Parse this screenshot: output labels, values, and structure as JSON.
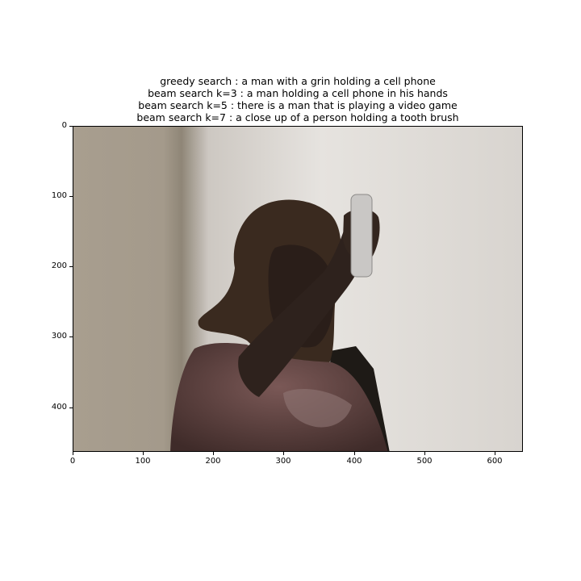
{
  "titles": [
    "greedy search : a man with a grin holding a cell phone",
    "beam search k=3 :  a man holding a cell phone in his hands",
    "beam search k=5 :  there is a man that is playing a video game",
    "beam search k=7 :  a close up of a person holding a tooth brush"
  ],
  "image": {
    "subject": "person holding a white game controller up",
    "colors": {
      "wall_left": "#a59a8a",
      "wall_right": "#dedad6",
      "figure": "#2c201c",
      "shirt": "#5a3f3c",
      "remote": "#c8c6c4"
    }
  },
  "axes": {
    "x_ticks": [
      "0",
      "100",
      "200",
      "300",
      "400",
      "500",
      "600"
    ],
    "y_ticks": [
      "0",
      "100",
      "200",
      "300",
      "400"
    ],
    "xlim": [
      0,
      640
    ],
    "ylim": [
      463,
      0
    ]
  }
}
